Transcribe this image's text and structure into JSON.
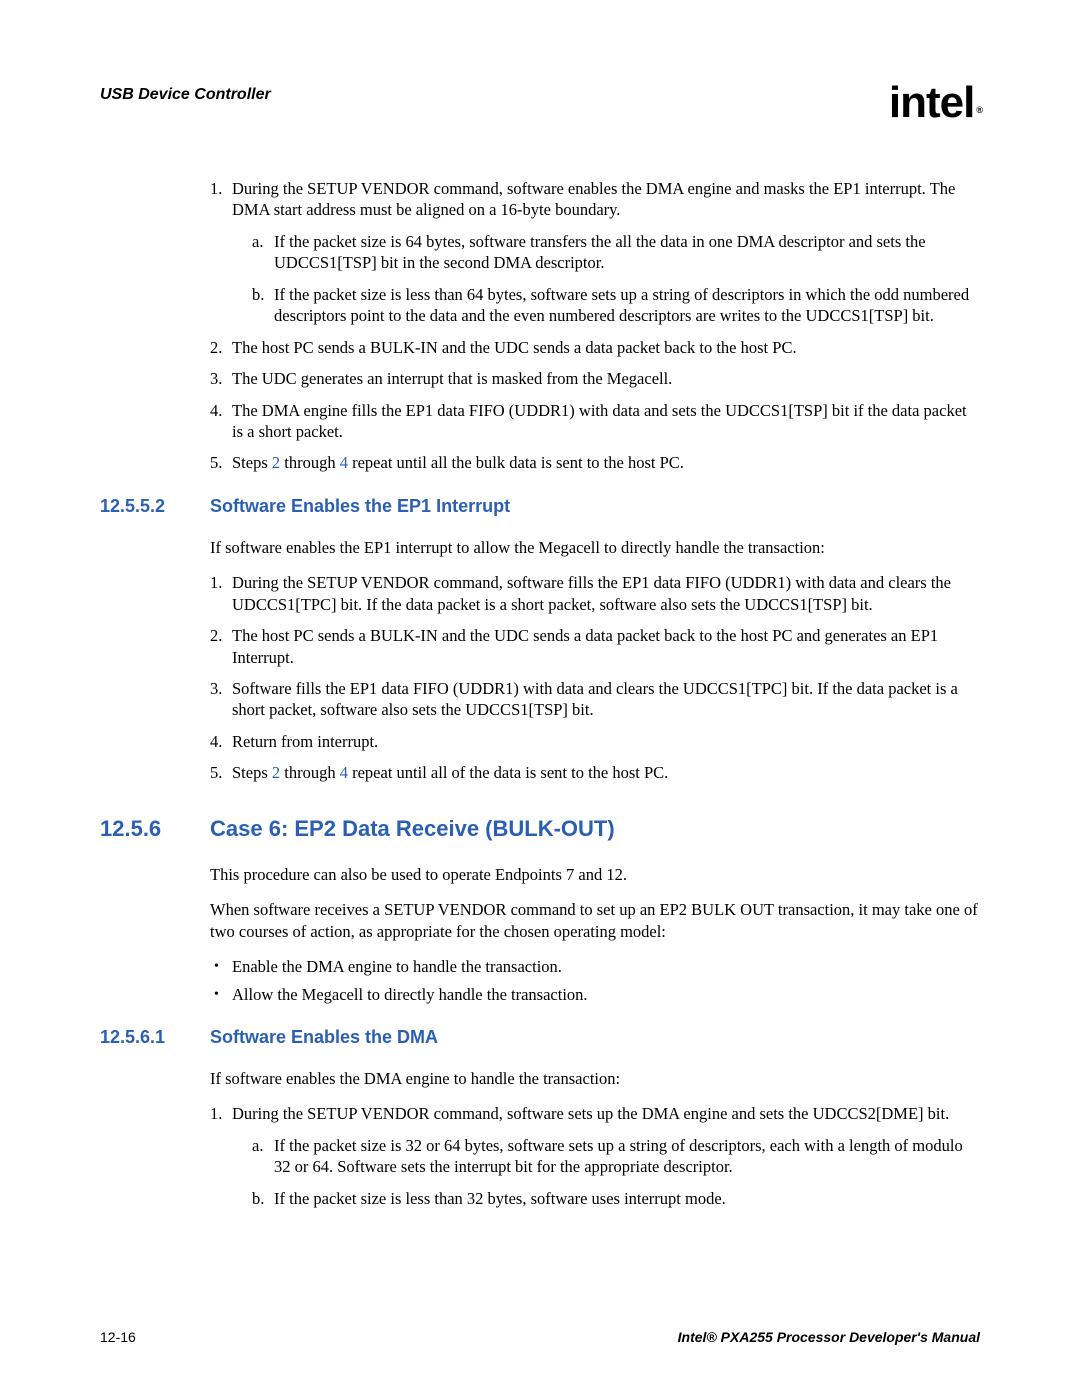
{
  "header": {
    "title": "USB Device Controller",
    "logo_text": "intel",
    "logo_sub": "®"
  },
  "section1": {
    "items": [
      {
        "text": "During the SETUP VENDOR command, software enables the DMA engine and masks the EP1 interrupt. The DMA start address must be aligned on a 16-byte boundary.",
        "sub": [
          "If the packet size is 64 bytes, software transfers the all the data in one DMA descriptor and sets the UDCCS1[TSP] bit in the second DMA descriptor.",
          "If the packet size is less than 64 bytes, software sets up a string of descriptors in which the odd numbered descriptors point to the data and the even numbered descriptors are writes to the UDCCS1[TSP] bit."
        ]
      },
      {
        "text": "The host PC sends a BULK-IN and the UDC sends a data packet back to the host PC."
      },
      {
        "text": "The UDC generates an interrupt that is masked from the Megacell."
      },
      {
        "text": "The DMA engine fills the EP1 data FIFO (UDDR1) with data and sets the UDCCS1[TSP] bit if the data packet is a short packet."
      },
      {
        "prefix": "Steps ",
        "link1": "2",
        "mid": " through ",
        "link2": "4",
        "suffix": " repeat until all the bulk data is sent to the host PC."
      }
    ]
  },
  "h3a": {
    "num": "12.5.5.2",
    "title": "Software Enables the EP1 Interrupt"
  },
  "para1": "If software enables the EP1 interrupt to allow the Megacell to directly handle the transaction:",
  "section2": {
    "items": [
      {
        "text": "During the SETUP VENDOR command, software fills the EP1 data FIFO (UDDR1) with data and clears the UDCCS1[TPC] bit. If the data packet is a short packet, software also sets the UDCCS1[TSP] bit."
      },
      {
        "text": "The host PC sends a BULK-IN and the UDC sends a data packet back to the host PC and generates an EP1 Interrupt."
      },
      {
        "text": "Software fills the EP1 data FIFO (UDDR1) with data and clears the UDCCS1[TPC] bit. If the data packet is a short packet, software also sets the UDCCS1[TSP] bit."
      },
      {
        "text": "Return from interrupt."
      },
      {
        "prefix": "Steps ",
        "link1": "2",
        "mid": " through ",
        "link2": "4",
        "suffix": " repeat until all of the data is sent to the host PC."
      }
    ]
  },
  "h2": {
    "num": "12.5.6",
    "title": "Case 6: EP2 Data Receive (BULK-OUT)"
  },
  "para2": "This procedure can also be used to operate Endpoints 7 and 12.",
  "para3": "When software receives a SETUP VENDOR command to set up an EP2 BULK OUT transaction, it may take one of two courses of action, as appropriate for the chosen operating model:",
  "bullets": [
    "Enable the DMA engine to handle the transaction.",
    "Allow the Megacell to directly handle the transaction."
  ],
  "h3b": {
    "num": "12.5.6.1",
    "title": "Software Enables the DMA"
  },
  "para4": "If software enables the DMA engine to handle the transaction:",
  "section3": {
    "items": [
      {
        "text": "During the SETUP VENDOR command, software sets up the DMA engine and sets the UDCCS2[DME] bit.",
        "sub": [
          "If the packet size is 32 or 64 bytes, software sets up a string of descriptors, each with a length of modulo 32 or 64. Software sets the interrupt bit for the appropriate descriptor.",
          "If the packet size is less than 32 bytes, software uses interrupt mode."
        ]
      }
    ]
  },
  "footer": {
    "page": "12-16",
    "manual": "Intel® PXA255 Processor Developer's Manual"
  }
}
